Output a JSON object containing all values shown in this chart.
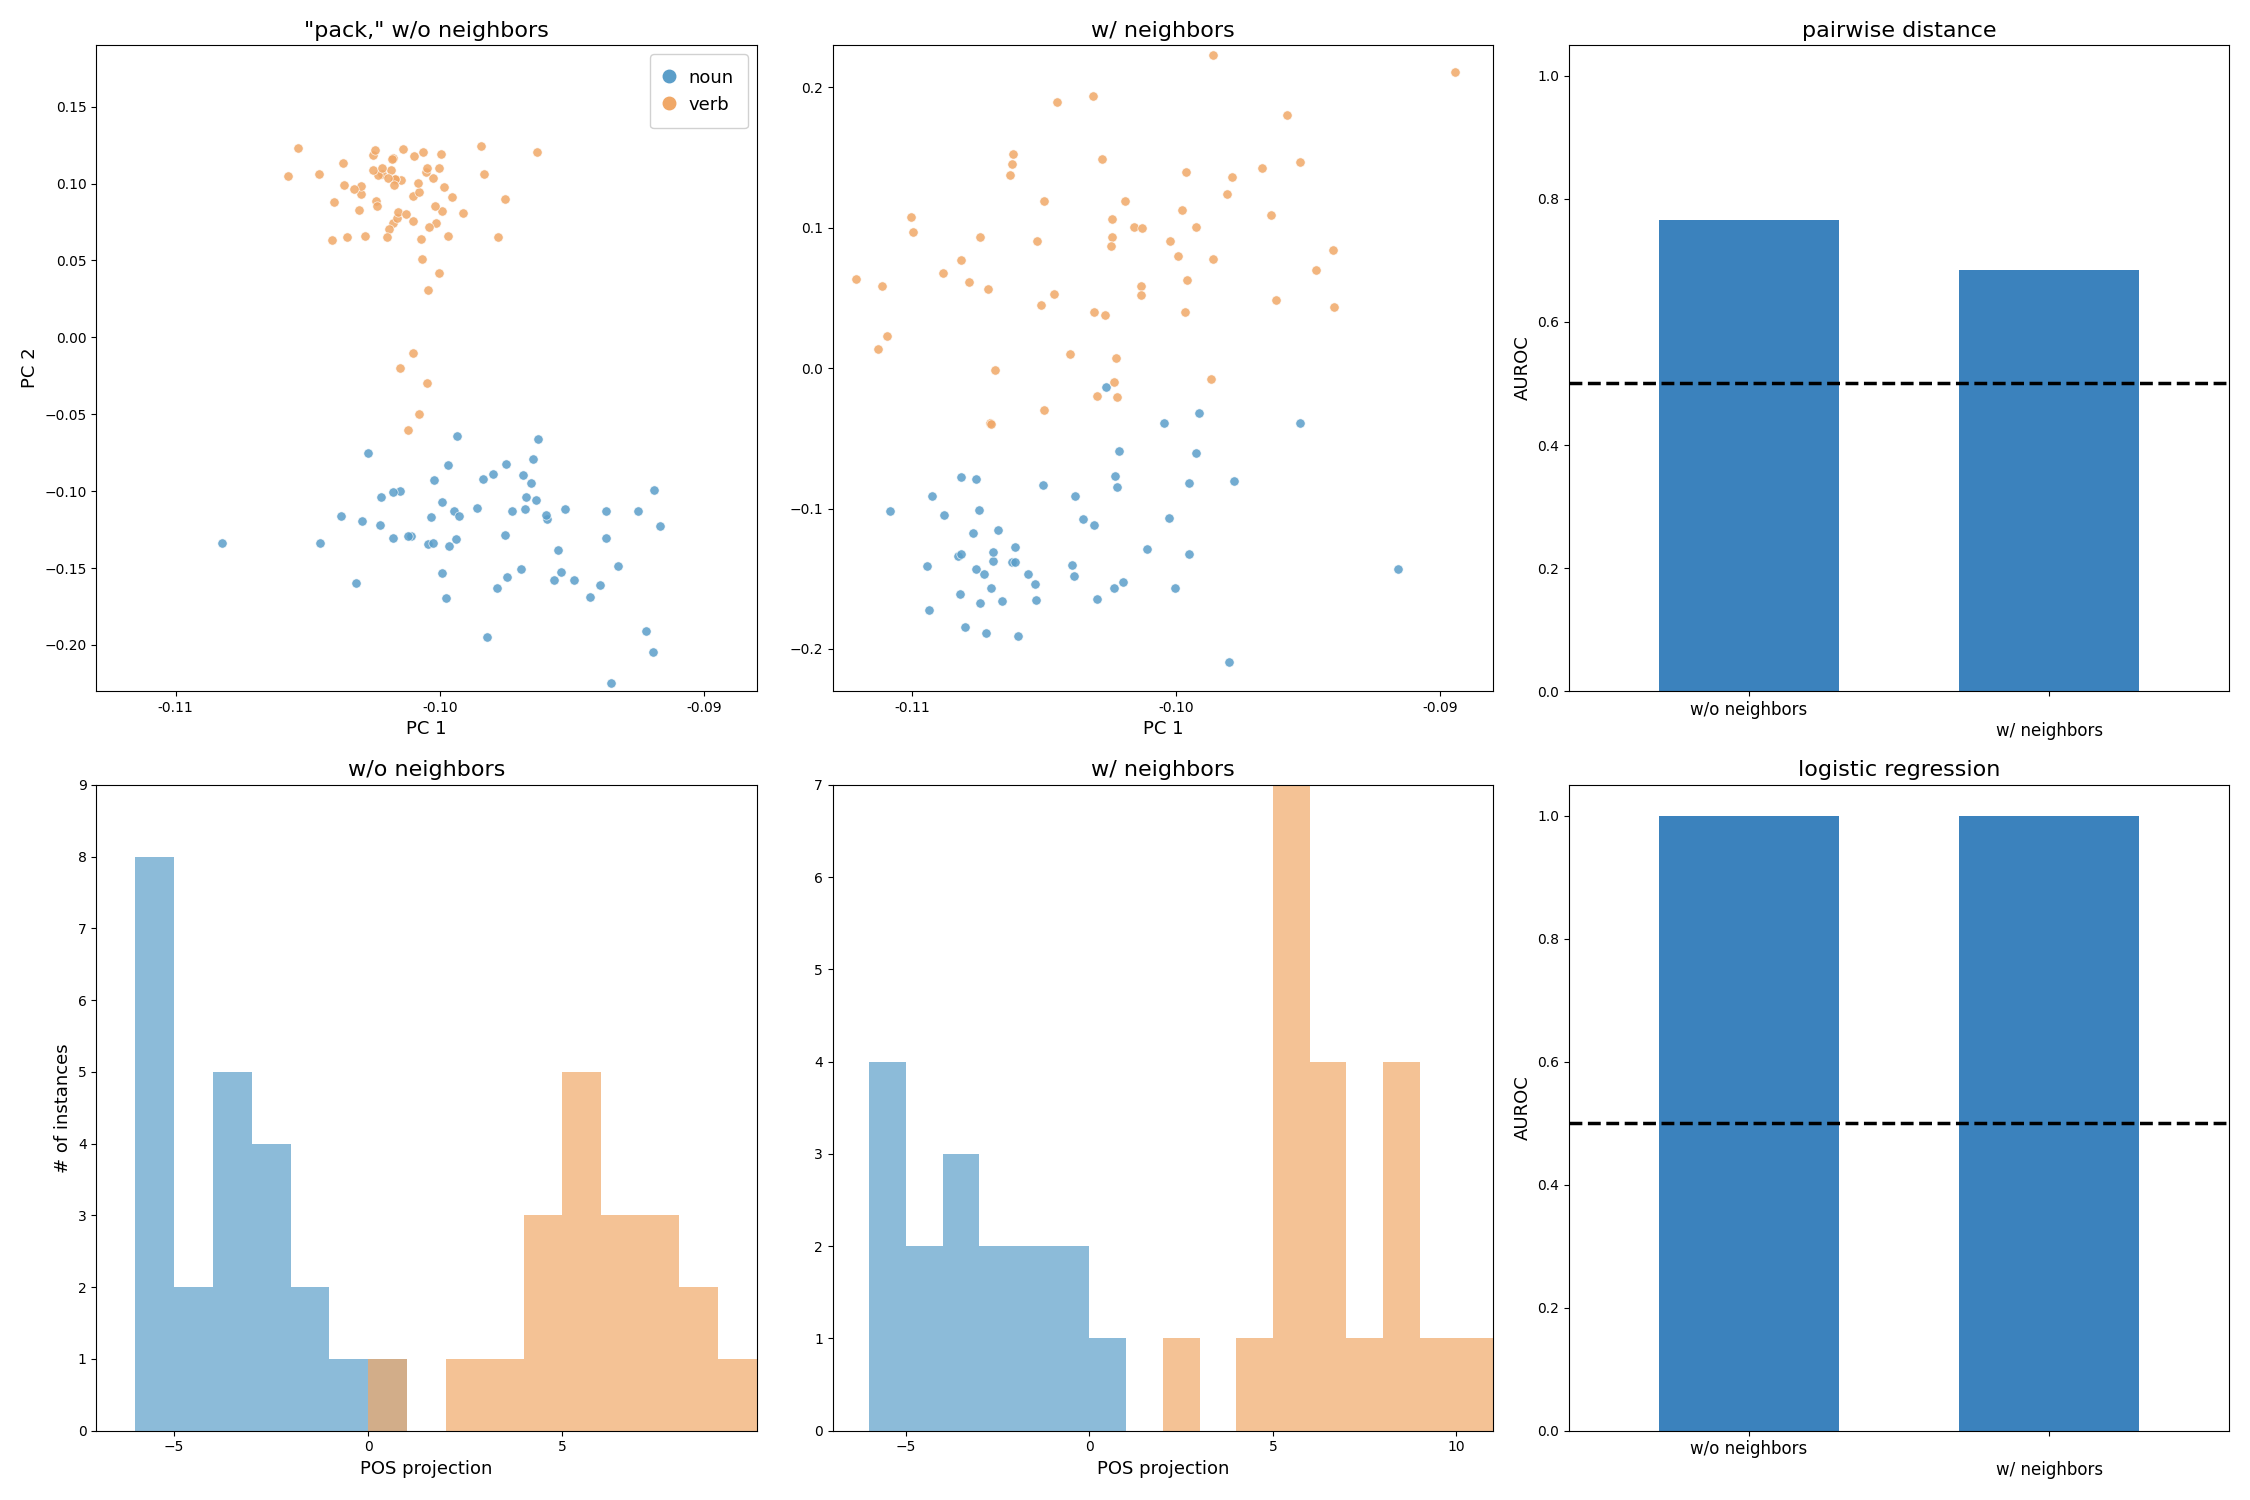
{
  "title_scatter1": "\"pack,\" w/o neighbors",
  "title_scatter2": "w/ neighbors",
  "title_bar1": "pairwise distance",
  "title_hist1": "w/o neighbors",
  "title_hist2": "w/ neighbors",
  "title_bar2": "logistic regression",
  "bar_pairwise": [
    0.765,
    0.685
  ],
  "bar_logreg": [
    1.0,
    1.0
  ],
  "bar_labels": [
    "w/o neighbors",
    "w/ neighbors"
  ],
  "bar_color": "#3b82bd",
  "dashed_line_y": 0.5,
  "noun_color": "#5b9ec9",
  "verb_color": "#f0a868",
  "xlabel_scatter": "PC 1",
  "ylabel_scatter": "PC 2",
  "xlabel_hist": "POS projection",
  "ylabel_hist": "# of instances",
  "ylabel_bar": "AUROC",
  "hist1_noun_bins": [
    -7,
    -6,
    -5,
    -4,
    -3,
    -2,
    -1,
    0,
    1,
    2
  ],
  "hist1_noun_counts": [
    0,
    8,
    2,
    5,
    4,
    2,
    1,
    1,
    0,
    0
  ],
  "hist1_verb_bins": [
    0,
    1,
    2,
    3,
    4,
    5,
    6,
    7,
    8,
    9
  ],
  "hist1_verb_counts": [
    1,
    0,
    1,
    1,
    3,
    5,
    3,
    3,
    2,
    1
  ],
  "hist2_noun_bins": [
    -7,
    -6,
    -5,
    -4,
    -3,
    -2,
    -1,
    0,
    1
  ],
  "hist2_noun_counts": [
    0,
    4,
    2,
    3,
    2,
    2,
    2,
    1,
    0
  ],
  "hist2_verb_bins": [
    2,
    3,
    4,
    5,
    6,
    7,
    8,
    9,
    10
  ],
  "hist2_verb_counts": [
    1,
    0,
    1,
    7,
    4,
    1,
    4,
    1,
    1
  ],
  "scatter1_xlim": [
    -0.113,
    -0.088
  ],
  "scatter1_ylim": [
    -0.23,
    0.19
  ],
  "scatter2_xlim": [
    -0.113,
    -0.088
  ],
  "scatter2_ylim": [
    -0.23,
    0.23
  ],
  "scatter1_xticks": [
    -0.11,
    -0.1,
    -0.09
  ],
  "scatter2_xticks": [
    -0.11,
    -0.1,
    -0.09
  ]
}
